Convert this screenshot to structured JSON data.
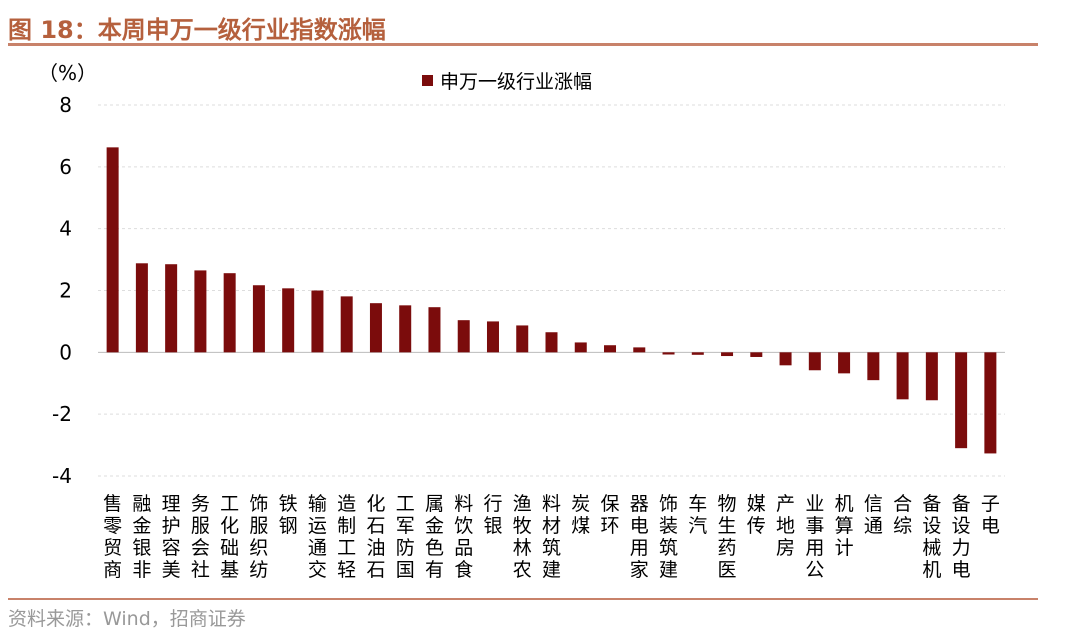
{
  "title": "图 18：本周申万一级行业指数涨幅",
  "source": "资料来源：Wind，招商证券",
  "chart_data": {
    "type": "bar",
    "title": "图 18：本周申万一级行业指数涨幅",
    "ylabel": "（%）",
    "ylim": [
      -4,
      8
    ],
    "yticks": [
      -4,
      -2,
      0,
      2,
      4,
      6,
      8
    ],
    "grid": true,
    "legend_placement": "top-center",
    "bar_color": "#7b0c0c",
    "categories": [
      "商贸零售",
      "非银金融",
      "美容护理",
      "社会服务",
      "基础化工",
      "纺织服饰",
      "钢铁",
      "交通运输",
      "轻工制造",
      "石油石化",
      "国防军工",
      "有色金属",
      "食品饮料",
      "银行",
      "农林牧渔",
      "建筑材料",
      "煤炭",
      "环保",
      "家用电器",
      "建筑装饰",
      "汽车",
      "医药生物",
      "传媒",
      "房地产",
      "公用事业",
      "计算机",
      "通信",
      "综合",
      "机械设备",
      "电力设备",
      "电子"
    ],
    "series": [
      {
        "name": "申万一级行业涨幅",
        "values": [
          6.63,
          2.88,
          2.85,
          2.65,
          2.56,
          2.17,
          2.07,
          2.0,
          1.81,
          1.59,
          1.52,
          1.46,
          1.04,
          1.0,
          0.87,
          0.65,
          0.32,
          0.23,
          0.16,
          -0.07,
          -0.08,
          -0.12,
          -0.15,
          -0.42,
          -0.58,
          -0.68,
          -0.9,
          -1.52,
          -1.55,
          -3.1,
          -3.27
        ]
      }
    ]
  }
}
